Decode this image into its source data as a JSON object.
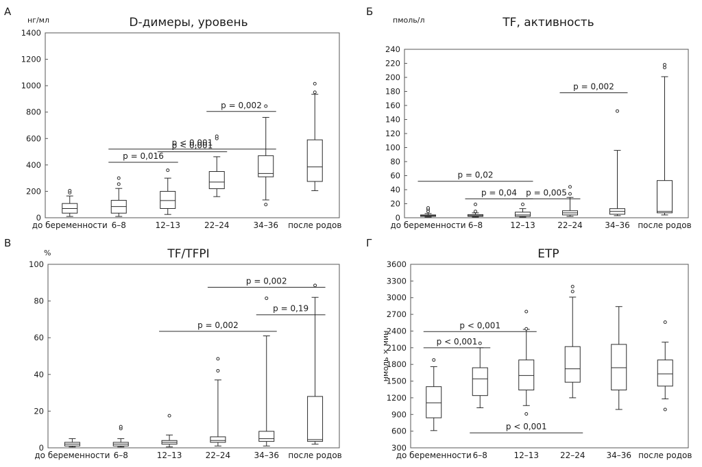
{
  "chart_data": [
    {
      "panel_letter": "А",
      "type": "boxplot",
      "title": "D-димеры, уровень",
      "unit": "нг/мл",
      "ylabel": "",
      "ylim": [
        0,
        1400
      ],
      "yticks": [
        0,
        200,
        400,
        600,
        800,
        1000,
        1200,
        1400
      ],
      "categories": [
        "до беременности",
        "6–8",
        "12–13",
        "22–24",
        "34–36",
        "после родов"
      ],
      "boxes": [
        {
          "whisker_low": 10,
          "q1": 35,
          "median": 70,
          "q3": 108,
          "whisker_high": 165,
          "outliers": [
            190,
            205
          ]
        },
        {
          "whisker_low": 10,
          "q1": 35,
          "median": 85,
          "q3": 132,
          "whisker_high": 222,
          "outliers": [
            255,
            300
          ]
        },
        {
          "whisker_low": 25,
          "q1": 70,
          "median": 130,
          "q3": 200,
          "whisker_high": 300,
          "outliers": [
            360
          ]
        },
        {
          "whisker_low": 160,
          "q1": 220,
          "median": 270,
          "q3": 350,
          "whisker_high": 462,
          "outliers": [
            600,
            617
          ]
        },
        {
          "whisker_low": 135,
          "q1": 310,
          "median": 335,
          "q3": 470,
          "whisker_high": 760,
          "outliers": [
            100,
            845
          ]
        },
        {
          "whisker_low": 205,
          "q1": 275,
          "median": 385,
          "q3": 590,
          "whisker_high": 935,
          "outliers": [
            950,
            1015
          ]
        }
      ],
      "comparisons": [
        {
          "label": "p < 0,001",
          "from": "6–8",
          "to": "34–36",
          "y": 520
        },
        {
          "label": "p = 0,016",
          "from": "6–8",
          "to": "12–13",
          "y": 420
        },
        {
          "label": "p < 0,001",
          "from": "12–13",
          "to": "22–24",
          "y": 500
        },
        {
          "label": "p = 0,002",
          "from": "22–24",
          "to": "34–36",
          "y": 805
        }
      ]
    },
    {
      "panel_letter": "Б",
      "type": "boxplot",
      "title": "TF, активность",
      "unit": "пмоль/л",
      "ylabel": "",
      "ylim": [
        0,
        240
      ],
      "yticks": [
        0,
        20,
        40,
        60,
        80,
        100,
        120,
        140,
        160,
        180,
        200,
        220,
        240
      ],
      "categories": [
        "до беременности",
        "6–8",
        "12–13",
        "22–24",
        "34–36",
        "после родов"
      ],
      "boxes": [
        {
          "whisker_low": 1,
          "q1": 2,
          "median": 3,
          "q3": 4,
          "whisker_high": 6,
          "outliers": [
            9,
            12,
            14
          ]
        },
        {
          "whisker_low": 1,
          "q1": 2,
          "median": 3,
          "q3": 4.5,
          "whisker_high": 7,
          "outliers": [
            9,
            19
          ]
        },
        {
          "whisker_low": 1,
          "q1": 2,
          "median": 4,
          "q3": 8,
          "whisker_high": 13,
          "outliers": [
            19
          ]
        },
        {
          "whisker_low": 2,
          "q1": 4,
          "median": 7,
          "q3": 10,
          "whisker_high": 29,
          "outliers": [
            34,
            44
          ]
        },
        {
          "whisker_low": 3,
          "q1": 5,
          "median": 9,
          "q3": 13,
          "whisker_high": 96,
          "outliers": [
            152
          ]
        },
        {
          "whisker_low": 4,
          "q1": 7,
          "median": 9,
          "q3": 53,
          "whisker_high": 201,
          "outliers": [
            214,
            218
          ]
        }
      ],
      "comparisons": [
        {
          "label": "p = 0,02",
          "from": "до беременности",
          "to": "12–13",
          "y": 52
        },
        {
          "label": "p = 0,04",
          "from": "6–8",
          "to": "12–13",
          "y": 27
        },
        {
          "label": "p = 0,005",
          "from": "12–13",
          "to": "22–24",
          "y": 27
        },
        {
          "label": "p = 0,002",
          "from": "22–24",
          "to": "34–36",
          "y": 178
        }
      ]
    },
    {
      "panel_letter": "В",
      "type": "boxplot",
      "title": "TF/TFPI",
      "unit": "%",
      "ylabel": "",
      "ylim": [
        0,
        100
      ],
      "yticks": [
        0,
        20,
        40,
        60,
        80,
        100
      ],
      "categories": [
        "до беременности",
        "6–8",
        "12–13",
        "22–24",
        "34–36",
        "после родов"
      ],
      "boxes": [
        {
          "whisker_low": 0.5,
          "q1": 1,
          "median": 2,
          "q3": 3,
          "whisker_high": 5,
          "outliers": []
        },
        {
          "whisker_low": 0.5,
          "q1": 1,
          "median": 2,
          "q3": 3,
          "whisker_high": 5,
          "outliers": [
            10.5,
            11.5
          ]
        },
        {
          "whisker_low": 0.5,
          "q1": 2,
          "median": 3,
          "q3": 4,
          "whisker_high": 7,
          "outliers": [
            17.5
          ]
        },
        {
          "whisker_low": 1,
          "q1": 3,
          "median": 4,
          "q3": 6,
          "whisker_high": 37,
          "outliers": [
            42,
            48.5
          ]
        },
        {
          "whisker_low": 1,
          "q1": 3.5,
          "median": 5,
          "q3": 9,
          "whisker_high": 61,
          "outliers": [
            81.5
          ]
        },
        {
          "whisker_low": 2,
          "q1": 3.5,
          "median": 4.5,
          "q3": 28,
          "whisker_high": 82,
          "outliers": [
            88.5
          ]
        }
      ],
      "comparisons": [
        {
          "label": "p = 0,002",
          "from": "22–24",
          "to": "после родов",
          "y": 87.5
        },
        {
          "label": "p = 0,19",
          "from": "34–36",
          "to": "после родов",
          "y": 72.5
        },
        {
          "label": "p = 0,002",
          "from": "12–13",
          "to": "34–36",
          "y": 63.5
        }
      ]
    },
    {
      "panel_letter": "Г",
      "type": "boxplot",
      "title": "ETP",
      "unit": "",
      "ylabel": "нмоль × мин",
      "ylim": [
        300,
        3600
      ],
      "yticks": [
        300,
        600,
        900,
        1200,
        1500,
        1800,
        2100,
        2400,
        2700,
        3000,
        3300,
        3600
      ],
      "categories": [
        "до беременности",
        "6–8",
        "12–13",
        "22–24",
        "34–36",
        "после родов"
      ],
      "boxes": [
        {
          "whisker_low": 610,
          "q1": 840,
          "median": 1110,
          "q3": 1400,
          "whisker_high": 1760,
          "outliers": [
            1880
          ]
        },
        {
          "whisker_low": 1020,
          "q1": 1240,
          "median": 1540,
          "q3": 1740,
          "whisker_high": 2100,
          "outliers": [
            2180
          ]
        },
        {
          "whisker_low": 1060,
          "q1": 1340,
          "median": 1600,
          "q3": 1880,
          "whisker_high": 2430,
          "outliers": [
            910,
            2440,
            2750
          ]
        },
        {
          "whisker_low": 1200,
          "q1": 1480,
          "median": 1720,
          "q3": 2120,
          "whisker_high": 3010,
          "outliers": [
            3110,
            3200
          ]
        },
        {
          "whisker_low": 990,
          "q1": 1340,
          "median": 1740,
          "q3": 2160,
          "whisker_high": 2840,
          "outliers": []
        },
        {
          "whisker_low": 1180,
          "q1": 1410,
          "median": 1630,
          "q3": 1880,
          "whisker_high": 2200,
          "outliers": [
            990,
            2560
          ]
        }
      ],
      "comparisons": [
        {
          "label": "p < 0,001",
          "from": "до беременности",
          "to": "6–8",
          "y": 2100
        },
        {
          "label": "p < 0,001",
          "from": "до беременности",
          "to": "12–13",
          "y": 2390
        },
        {
          "label": "p < 0,001",
          "from": "6–8",
          "to": "22–24",
          "y": 570
        }
      ]
    }
  ]
}
